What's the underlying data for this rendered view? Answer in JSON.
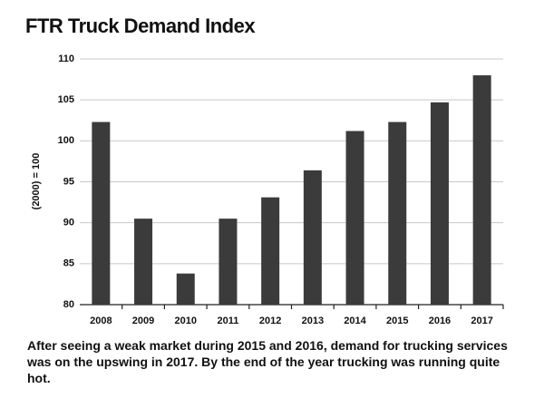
{
  "chart_data": {
    "type": "bar",
    "title": "FTR Truck Demand Index",
    "y_label": "(2000) = 100",
    "caption": "After seeing a weak market during 2015 and 2016, demand for trucking services was on the upswing in 2017. By the end of the year trucking was running quite hot.",
    "categories": [
      "2008",
      "2009",
      "2010",
      "2011",
      "2012",
      "2013",
      "2014",
      "2015",
      "2016",
      "2017"
    ],
    "values": [
      102.3,
      90.5,
      83.8,
      90.5,
      93.1,
      96.4,
      101.2,
      102.3,
      104.7,
      108.0
    ],
    "color": "#3b3b3b",
    "ylim": [
      80,
      110
    ],
    "yticks": [
      80,
      85,
      90,
      95,
      100,
      105,
      110
    ],
    "grid": true
  }
}
